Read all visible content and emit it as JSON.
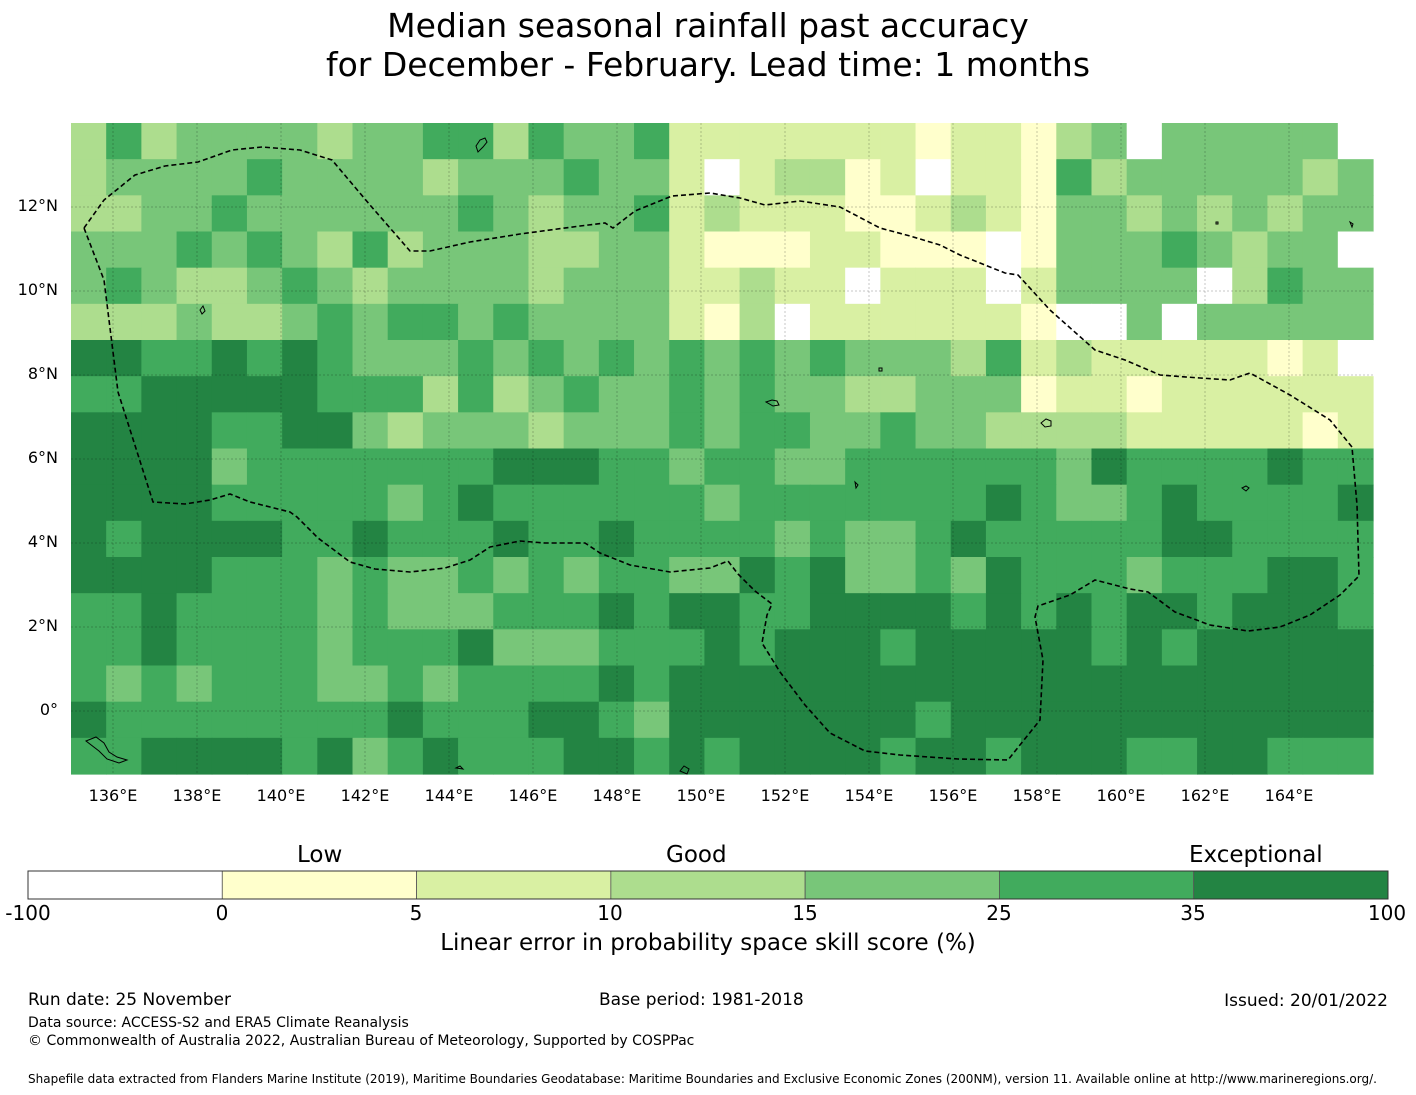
{
  "title": {
    "line1": "Median seasonal rainfall past accuracy",
    "line2": "for December - February. Lead time: 1 months"
  },
  "map": {
    "lon_range": [
      135,
      166
    ],
    "lat_range": [
      -1.5,
      14
    ],
    "lat_labels": [
      "12°N",
      "10°N",
      "8°N",
      "6°N",
      "4°N",
      "2°N",
      "0°"
    ],
    "lat_values": [
      12,
      10,
      8,
      6,
      4,
      2,
      0
    ],
    "lon_labels": [
      "136°E",
      "138°E",
      "140°E",
      "142°E",
      "144°E",
      "146°E",
      "148°E",
      "150°E",
      "152°E",
      "154°E",
      "156°E",
      "158°E",
      "160°E",
      "162°E",
      "164°E"
    ],
    "lon_values": [
      136,
      138,
      140,
      142,
      144,
      146,
      148,
      150,
      152,
      154,
      156,
      158,
      160,
      162,
      164
    ],
    "boundary_style": "dashed"
  },
  "colorbar": {
    "categories": [
      {
        "label": "Low"
      },
      {
        "label": "Good"
      },
      {
        "label": "Exceptional"
      }
    ],
    "ticks": [
      "-100",
      "0",
      "5",
      "10",
      "15",
      "25",
      "35",
      "100"
    ],
    "colors": [
      "#ffffff",
      "#ffffcc",
      "#d9f0a3",
      "#addd8e",
      "#78c679",
      "#41ab5d",
      "#238443"
    ],
    "label": "Linear error in probability space skill score (%)"
  },
  "footer": {
    "run_date": "Run date: 25 November",
    "base_period": "Base period: 1981-2018",
    "issued": "Issued: 20/01/2022",
    "data_source": "Data source: ACCESS-S2 and ERA5 Climate Reanalysis",
    "copyright": "© Commonwealth of Australia 2022, Australian Bureau of Meteorology, Supported by COSPPac",
    "shapefile": "Shapefile data extracted from Flanders Marine Institute (2019), Maritime Boundaries Geodatabase: Maritime Boundaries and Exclusive Economic Zones (200NM), version 11. Available online at http://www.marineregions.org/."
  }
}
